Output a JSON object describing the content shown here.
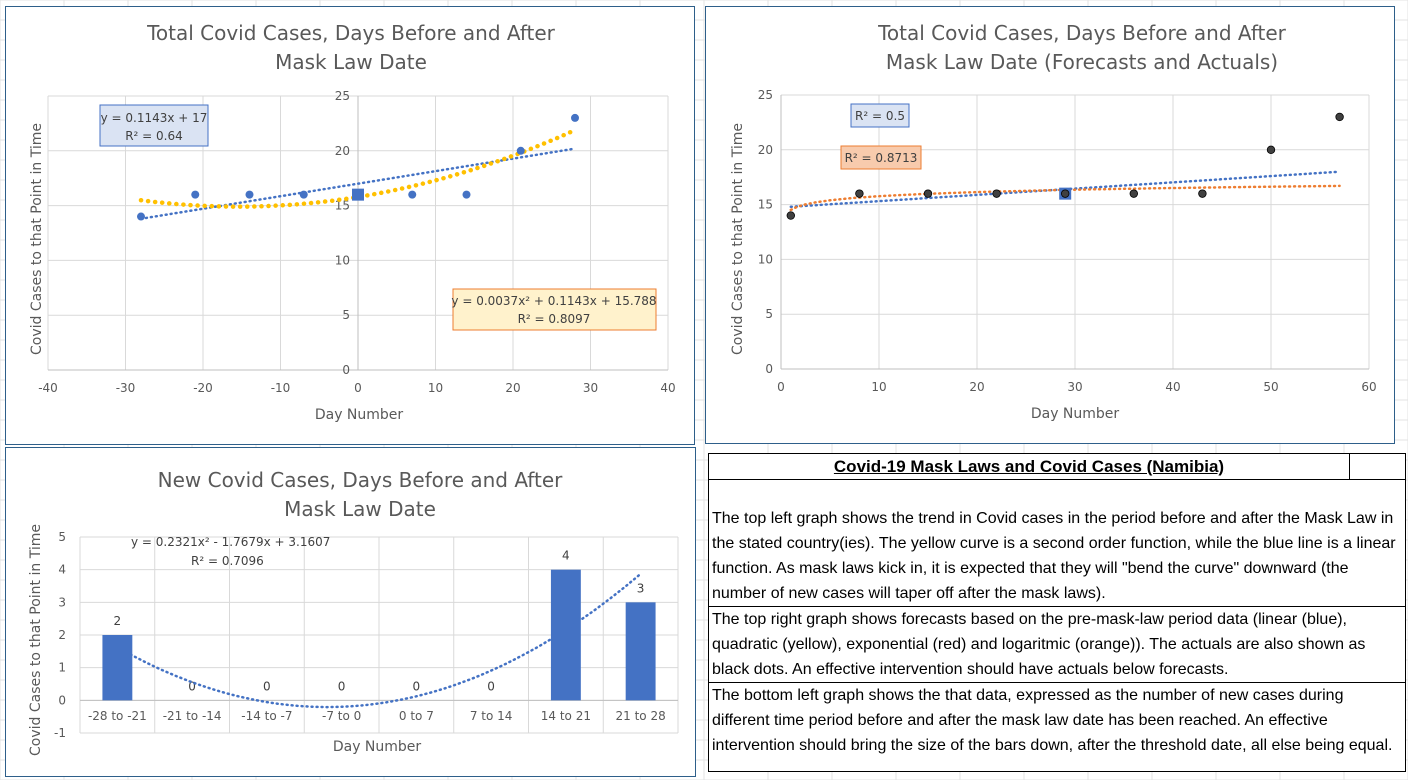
{
  "colors": {
    "series_blue": "#4472c4",
    "quad_trend": "#ffc000",
    "log_trend": "#ed7d31",
    "actual_dot": "#404040",
    "frame": "#2e5f8a"
  },
  "chart_data": [
    {
      "id": "top_left",
      "type": "scatter",
      "title_lines": [
        "Total Covid Cases, Days Before and After",
        "Mask Law Date"
      ],
      "xlabel": "Day Number",
      "ylabel": "Covid Cases to that Point in Time",
      "xlim": [
        -40,
        40
      ],
      "ylim": [
        0,
        25
      ],
      "xticks": [
        -40,
        -30,
        -20,
        -10,
        0,
        10,
        20,
        30,
        40
      ],
      "yticks": [
        0,
        5,
        10,
        15,
        20,
        25
      ],
      "grid": true,
      "points": {
        "x": [
          -28,
          -21,
          -14,
          -7,
          7,
          14,
          21,
          28
        ],
        "y": [
          14,
          16,
          16,
          16,
          16,
          16,
          20,
          23
        ]
      },
      "mask_point": {
        "x": 0,
        "y": 16
      },
      "linear_trend": {
        "slope": 0.1143,
        "intercept": 17,
        "x_range": [
          -28,
          28
        ]
      },
      "quadratic_trend": {
        "a": 0.0037,
        "b": 0.1143,
        "c": 15.788,
        "x_range": [
          -28,
          28
        ]
      },
      "labels": {
        "linear_eq": "y = 0.1143x + 17",
        "linear_r2": "R² = 0.64",
        "quad_eq": "y = 0.0037x² + 0.1143x + 15.788",
        "quad_r2": "R² = 0.8097"
      }
    },
    {
      "id": "top_right",
      "type": "scatter",
      "title_lines": [
        "Total Covid Cases, Days Before and After",
        "Mask Law Date (Forecasts and Actuals)"
      ],
      "xlabel": "Day Number",
      "ylabel": "Covid Cases to that Point in Time",
      "xlim": [
        0,
        60
      ],
      "ylim": [
        0,
        25
      ],
      "xticks": [
        0,
        10,
        20,
        30,
        40,
        50,
        60
      ],
      "yticks": [
        0,
        5,
        10,
        15,
        20,
        25
      ],
      "grid": true,
      "actuals": {
        "x": [
          1,
          8,
          15,
          22,
          29,
          36,
          43,
          50,
          57
        ],
        "y": [
          14,
          16,
          16,
          16,
          16,
          16,
          16,
          20,
          23
        ]
      },
      "mask_point": {
        "x": 29,
        "y": 16
      },
      "linear_forecast": {
        "x": [
          1,
          57
        ],
        "y": [
          14.8,
          18
        ]
      },
      "log_forecast": {
        "a": 14.52,
        "b": 0.54,
        "x_range": [
          1,
          57
        ]
      },
      "labels": {
        "linear_r2": "R² = 0.5",
        "log_r2": "R² = 0.8713"
      }
    },
    {
      "id": "bottom_left",
      "type": "bar",
      "title_lines": [
        "New Covid Cases, Days Before and After",
        "Mask Law Date"
      ],
      "xlabel": "Day Number",
      "ylabel": "Covid Cases to that Point in Time",
      "categories": [
        "-28 to -21",
        "-21 to -14",
        "-14 to -7",
        "-7 to 0",
        "0 to 7",
        "7 to 14",
        "14 to 21",
        "21 to 28"
      ],
      "values": [
        2,
        0,
        0,
        0,
        0,
        0,
        4,
        3
      ],
      "ylim": [
        -1,
        5
      ],
      "yticks": [
        -1,
        0,
        1,
        2,
        3,
        4,
        5
      ],
      "grid": true,
      "poly_trend": {
        "a": 0.2321,
        "b": -1.7679,
        "c": 3.1607
      },
      "labels": {
        "eq": "y = 0.2321x² - 1.7679x + 3.1607",
        "r2": "R² = 0.7096"
      }
    }
  ],
  "info": {
    "title": "Covid-19 Mask Laws and Covid Cases (Namibia)",
    "paragraphs": [
      "The top left graph shows the trend in Covid cases in the period before and after the Mask Law in the stated country(ies).  The yellow curve is a second order function, while the blue line is a linear function.  As mask laws kick in, it is expected that they will \"bend the curve\" downward (the number of new cases will taper off after the mask laws).",
      "The top right graph shows forecasts based on the pre-mask-law period data (linear (blue), quadratic (yellow), exponential (red) and logaritmic (orange)).  The actuals are also shown as black dots.  An effective intervention should have actuals below forecasts.",
      "The bottom left graph shows the that data, expressed as the number of new cases during different time period before and after the mask law date has been reached.  An effective intervention should bring the size of the bars down, after the threshold date, all else being equal."
    ]
  }
}
